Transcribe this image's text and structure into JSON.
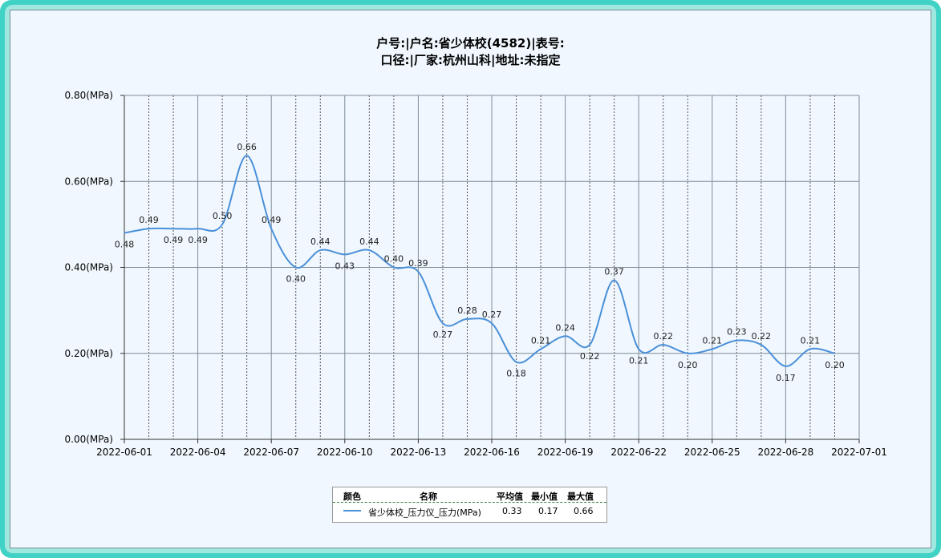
{
  "title_line1": "户号:|户名:省少体校(4582)|表号:",
  "title_line2": "口径:|厂家:杭州山科|地址:未指定",
  "colors": {
    "series": "#4a90d9",
    "grid_major": "#7f8c96",
    "grid_dotted": "#555555",
    "background": "#f0f7fe",
    "frame": "#40d2c4"
  },
  "chart_data": {
    "type": "line",
    "title": "户号:|户名:省少体校(4582)|表号: 口径:|厂家:杭州山科|地址:未指定",
    "xlabel": "",
    "ylabel": "",
    "x_ticks": [
      "2022-06-01",
      "2022-06-04",
      "2022-06-07",
      "2022-06-10",
      "2022-06-13",
      "2022-06-16",
      "2022-06-19",
      "2022-06-22",
      "2022-06-25",
      "2022-06-28",
      "2022-07-01"
    ],
    "y_ticks": [
      "0.00(MPa)",
      "0.20(MPa)",
      "0.40(MPa)",
      "0.60(MPa)",
      "0.80(MPa)"
    ],
    "ylim": [
      0,
      0.8
    ],
    "xlim": [
      "2022-06-01",
      "2022-07-01"
    ],
    "grid": true,
    "legend_position": "bottom-center",
    "x": [
      "2022-06-01",
      "2022-06-02",
      "2022-06-03",
      "2022-06-04",
      "2022-06-05",
      "2022-06-06",
      "2022-06-07",
      "2022-06-08",
      "2022-06-09",
      "2022-06-10",
      "2022-06-11",
      "2022-06-12",
      "2022-06-13",
      "2022-06-14",
      "2022-06-15",
      "2022-06-16",
      "2022-06-17",
      "2022-06-18",
      "2022-06-19",
      "2022-06-20",
      "2022-06-21",
      "2022-06-22",
      "2022-06-23",
      "2022-06-24",
      "2022-06-25",
      "2022-06-26",
      "2022-06-27",
      "2022-06-28",
      "2022-06-29",
      "2022-06-30"
    ],
    "series": [
      {
        "name": "省少体校_压力仪_压力(MPa)",
        "values": [
          0.48,
          0.49,
          0.49,
          0.49,
          0.5,
          0.66,
          0.49,
          0.4,
          0.44,
          0.43,
          0.44,
          0.4,
          0.39,
          0.27,
          0.28,
          0.27,
          0.18,
          0.21,
          0.24,
          0.22,
          0.37,
          0.21,
          0.22,
          0.2,
          0.21,
          0.23,
          0.22,
          0.17,
          0.21,
          0.2
        ],
        "labels": [
          "0.48",
          "0.49",
          "0.49",
          "0.49",
          "0.50",
          "0.66",
          "0.49",
          "0.40",
          "0.44",
          "0.43",
          "0.44",
          "0.40",
          "0.39",
          "0.27",
          "0.28",
          "0.27",
          "0.18",
          "0.21",
          "0.24",
          "0.22",
          "0.37",
          "0.21",
          "0.22",
          "0.20",
          "0.21",
          "0.23",
          "0.22",
          "0.17",
          "0.21",
          "0.20"
        ]
      }
    ]
  },
  "legend": {
    "headers": {
      "color": "颜色",
      "name": "名称",
      "avg": "平均值",
      "min": "最小值",
      "max": "最大值"
    },
    "rows": [
      {
        "name": "省少体校_压力仪_压力(MPa)",
        "avg": "0.33",
        "min": "0.17",
        "max": "0.66"
      }
    ]
  }
}
